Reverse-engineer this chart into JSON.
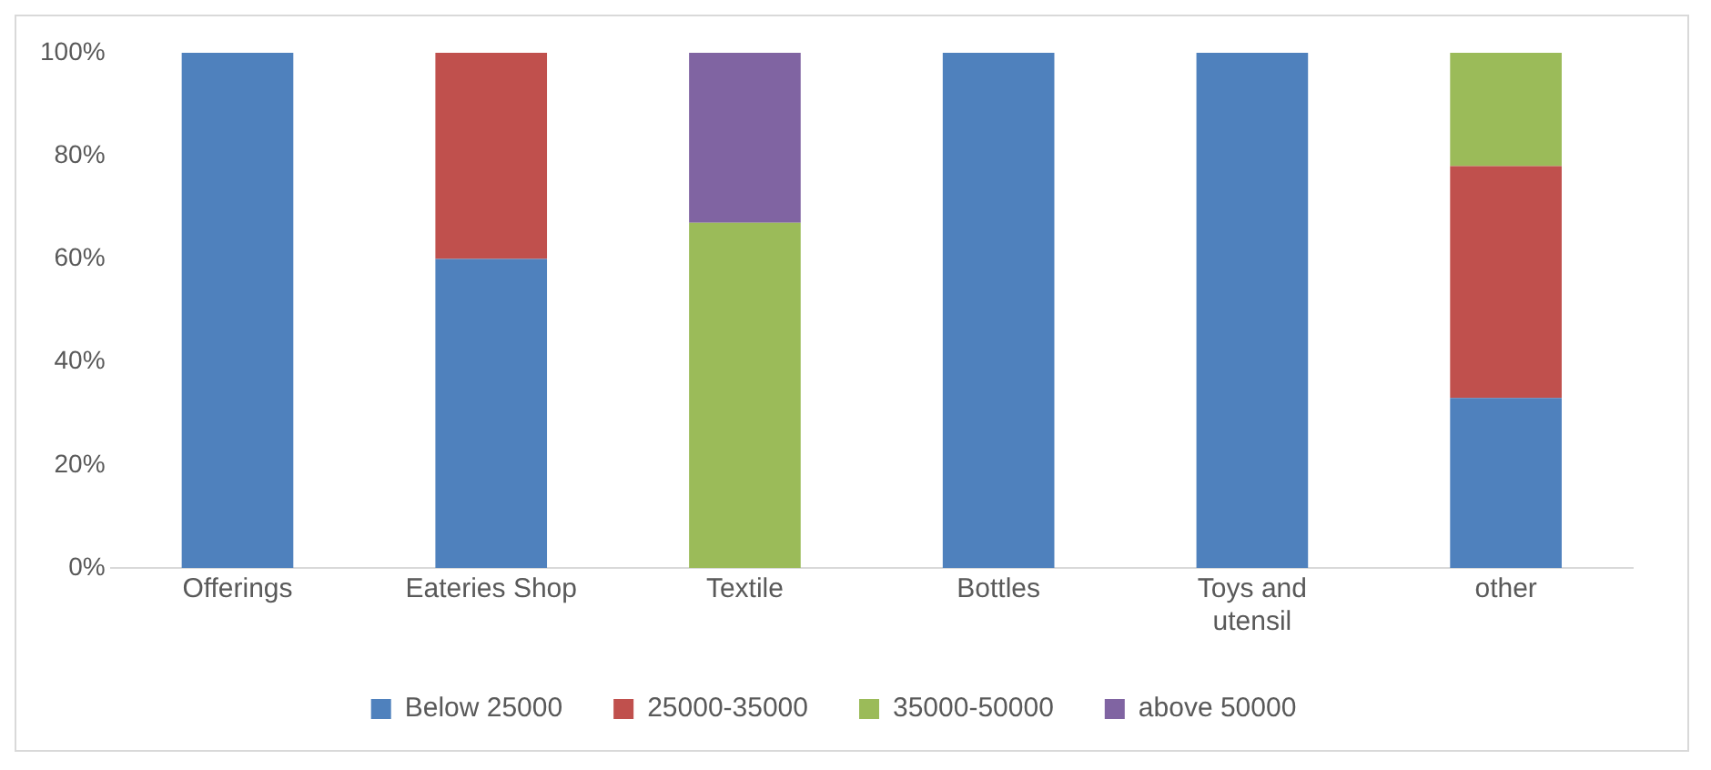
{
  "chart_data": {
    "type": "bar",
    "stacked": true,
    "categories": [
      "Offerings",
      "Eateries Shop",
      "Textile",
      "Bottles",
      "Toys and utensil",
      "other"
    ],
    "series": [
      {
        "name": "Below 25000",
        "color": "#4f81bd",
        "values": [
          100,
          60,
          null,
          100,
          100,
          33
        ]
      },
      {
        "name": "25000-35000",
        "color": "#c0504d",
        "values": [
          null,
          40,
          null,
          null,
          null,
          45
        ]
      },
      {
        "name": "35000-50000",
        "color": "#9bbb59",
        "values": [
          null,
          null,
          67,
          null,
          null,
          22
        ]
      },
      {
        "name": "above 50000",
        "color": "#8064a2",
        "values": [
          null,
          null,
          33,
          null,
          null,
          null
        ]
      }
    ],
    "ylim": [
      0,
      100
    ],
    "yticks": [
      {
        "value": 0,
        "label": "0%"
      },
      {
        "value": 20,
        "label": "20%"
      },
      {
        "value": 40,
        "label": "40%"
      },
      {
        "value": 60,
        "label": "60%"
      },
      {
        "value": 80,
        "label": "80%"
      },
      {
        "value": 100,
        "label": "100%"
      }
    ],
    "grid": false,
    "legend": "bottom"
  }
}
